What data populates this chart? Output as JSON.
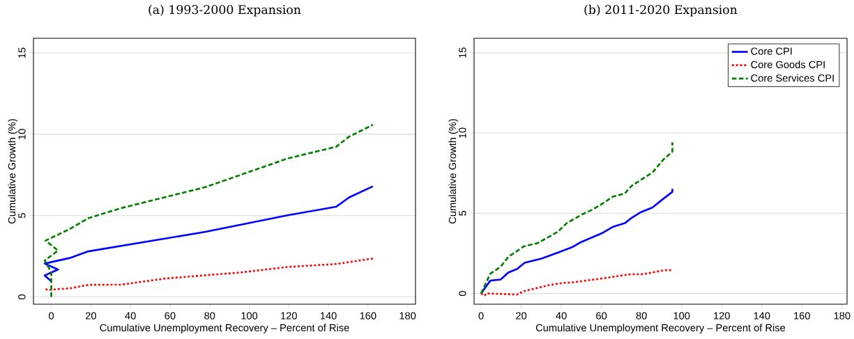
{
  "chart_data": [
    {
      "type": "line",
      "title": "(a) 1993-2000 Expansion",
      "xlabel": "Cumulative Unemployment Recovery – Percent of Rise",
      "ylabel": "Cumulative Growth (%)",
      "xlim": [
        -9,
        184
      ],
      "ylim": [
        -0.45,
        15.9
      ],
      "xticks": [
        0,
        20,
        40,
        60,
        80,
        100,
        120,
        140,
        160,
        180
      ],
      "yticks": [
        0,
        5,
        10,
        15
      ],
      "grid": "y",
      "series": [
        {
          "color": "#0000ff",
          "line_style": "solid",
          "x": [
            0,
            -3.3,
            0,
            3.4,
            -3.3,
            9.3,
            18.7,
            77.9,
            119.4,
            143.9,
            150.4,
            162.5
          ],
          "values": [
            0.96,
            1.32,
            1.5,
            1.68,
            2.05,
            2.39,
            2.8,
            4.0,
            5.02,
            5.54,
            6.11,
            6.8
          ]
        },
        {
          "color": "#ff0000",
          "line_style": "dotted",
          "x": [
            -2.9,
            0,
            2.4,
            9.3,
            18.7,
            35.1,
            57.7,
            95.5,
            119.4,
            143.9,
            162.5
          ],
          "values": [
            0.46,
            0.43,
            0.47,
            0.52,
            0.74,
            0.75,
            1.13,
            1.5,
            1.84,
            2.02,
            2.36
          ]
        },
        {
          "color": "#008000",
          "line_style": "dashed",
          "x": [
            0,
            0,
            -3.3,
            3.4,
            -2.9,
            9.3,
            18.7,
            35.1,
            77.9,
            119.4,
            143.9,
            150.4,
            162.5
          ],
          "values": [
            0,
            1.5,
            2.24,
            2.85,
            3.46,
            4.17,
            4.84,
            5.45,
            6.75,
            8.51,
            9.23,
            9.85,
            10.58
          ]
        }
      ]
    },
    {
      "type": "line",
      "title": "(b) 2011-2020 Expansion",
      "xlabel": "Cumulative Unemployment Recovery – Percent of Rise",
      "ylabel": "Cumulative Growth (%)",
      "xlim": [
        -3.5,
        182.5
      ],
      "ylim": [
        -0.67,
        15.9
      ],
      "xticks": [
        0,
        20,
        40,
        60,
        80,
        100,
        120,
        140,
        160,
        180
      ],
      "yticks": [
        0,
        5,
        10,
        15
      ],
      "grid": "y",
      "legend": "top right",
      "series": [
        {
          "name": "Core CPI",
          "color": "#0000ff",
          "line_style": "solid",
          "x": [
            0,
            4.6,
            9.8,
            13.6,
            17.9,
            21.7,
            30.1,
            38.2,
            45.7,
            49.7,
            60.1,
            65.9,
            71.7,
            75.1,
            79.8,
            85.5,
            91.3,
            95.4,
            95.4
          ],
          "values": [
            0,
            0.8,
            0.87,
            1.3,
            1.52,
            1.91,
            2.17,
            2.54,
            2.9,
            3.19,
            3.74,
            4.16,
            4.38,
            4.71,
            5.07,
            5.36,
            5.94,
            6.33,
            6.52
          ]
        },
        {
          "name": "Core Goods CPI",
          "color": "#ff0000",
          "line_style": "dotted",
          "x": [
            0,
            1.7,
            2.9,
            17.9,
            21.4,
            33.5,
            40.5,
            46.2,
            62.4,
            74,
            80.9,
            91.3,
            95.4
          ],
          "values": [
            0,
            -0.14,
            0,
            -0.07,
            0.14,
            0.51,
            0.65,
            0.7,
            0.97,
            1.19,
            1.2,
            1.45,
            1.45
          ]
        },
        {
          "name": "Core Services CPI",
          "color": "#008000",
          "line_style": "dashed",
          "x": [
            0,
            4.6,
            9.8,
            13.6,
            21.4,
            28.3,
            38.2,
            42.8,
            50.9,
            55.5,
            59.9,
            65.9,
            71.7,
            75.1,
            85.5,
            90.8,
            95.4,
            95.4
          ],
          "values": [
            0,
            1.23,
            1.67,
            2.28,
            2.94,
            3.14,
            3.84,
            4.39,
            4.96,
            5.22,
            5.55,
            6.04,
            6.23,
            6.71,
            7.54,
            8.33,
            8.84,
            9.42
          ]
        }
      ]
    }
  ]
}
